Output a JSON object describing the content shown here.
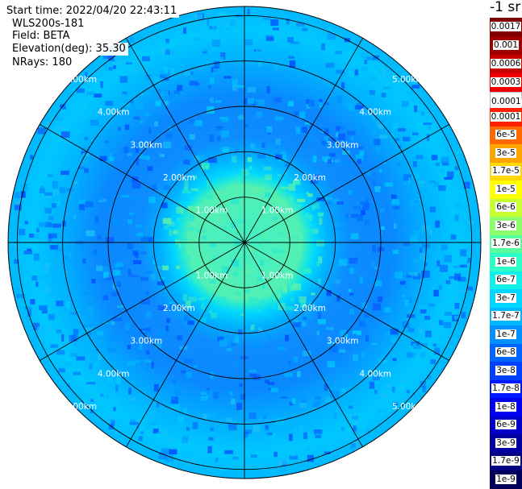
{
  "header": {
    "start_time": "Start time: 2022/04/20 22:43:11",
    "instrument": "WLS200s-181",
    "field": "Field: BETA",
    "elevation": "Elevation(deg): 35.30",
    "nrays": "NRays: 180"
  },
  "colorbar": {
    "title": "-1 sr",
    "top_entries": [
      {
        "label": "0.0017",
        "color": "#800000"
      },
      {
        "label": "0.001",
        "color": "#a00000"
      },
      {
        "label": "0.0006",
        "color": "#c80000"
      },
      {
        "label": "0.0003",
        "color": "#ee0000"
      },
      {
        "label": "0.00017",
        "color": "#ffffff"
      }
    ],
    "entries": [
      {
        "label": "0.0001",
        "color": "#ff2000"
      },
      {
        "label": "6e-5",
        "color": "#ff6a00"
      },
      {
        "label": "3e-5",
        "color": "#ffa500"
      },
      {
        "label": "1.7e-5",
        "color": "#ffd800"
      },
      {
        "label": "1e-5",
        "color": "#ffff00"
      },
      {
        "label": "6e-6",
        "color": "#c8ff33"
      },
      {
        "label": "3e-6",
        "color": "#8cff6a"
      },
      {
        "label": "1.7e-6",
        "color": "#58ff9c"
      },
      {
        "label": "1e-6",
        "color": "#2effc8"
      },
      {
        "label": "6e-7",
        "color": "#10f0e8"
      },
      {
        "label": "3e-7",
        "color": "#00d6ff"
      },
      {
        "label": "1.7e-7",
        "color": "#00b6ff"
      },
      {
        "label": "1e-7",
        "color": "#0090ff"
      },
      {
        "label": "6e-8",
        "color": "#0066ff"
      },
      {
        "label": "3e-8",
        "color": "#0040ff"
      },
      {
        "label": "1.7e-8",
        "color": "#0018ff"
      },
      {
        "label": "1e-8",
        "color": "#0000ee"
      },
      {
        "label": "6e-9",
        "color": "#0000c8"
      },
      {
        "label": "3e-9",
        "color": "#0000a0"
      },
      {
        "label": "1.7e-9",
        "color": "#000080"
      },
      {
        "label": "1e-9",
        "color": "#00005a"
      }
    ]
  },
  "chart_data": {
    "type": "heatmap",
    "projection": "polar (PPI scan)",
    "field": "BETA",
    "units": "sr-1",
    "scale": "log",
    "azimuth_rays": 180,
    "range_ring_labels": [
      "1.00km",
      "2.00km",
      "3.00km",
      "4.00km",
      "5.00km"
    ],
    "rings_km": [
      1,
      2,
      3,
      4,
      5
    ],
    "max_range_km": 5.2,
    "spoke_angles_deg": [
      0,
      30,
      60,
      90,
      120,
      150,
      180,
      210,
      240,
      270,
      300,
      330
    ],
    "range_profile": [
      {
        "range_km": 0.5,
        "value": "1.7e-6"
      },
      {
        "range_km": 1.0,
        "value": "1.7e-6"
      },
      {
        "range_km": 1.5,
        "value": "1.7e-6"
      },
      {
        "range_km": 2.0,
        "value": "1e-6"
      },
      {
        "range_km": 2.5,
        "value": "6e-7"
      },
      {
        "range_km": 3.0,
        "value": "3e-7"
      },
      {
        "range_km": 3.5,
        "value": "1.7e-7"
      },
      {
        "range_km": 4.0,
        "value": "1e-7"
      },
      {
        "range_km": 4.5,
        "value": "6e-8"
      },
      {
        "range_km": 5.0,
        "value": "6e-8"
      }
    ]
  }
}
